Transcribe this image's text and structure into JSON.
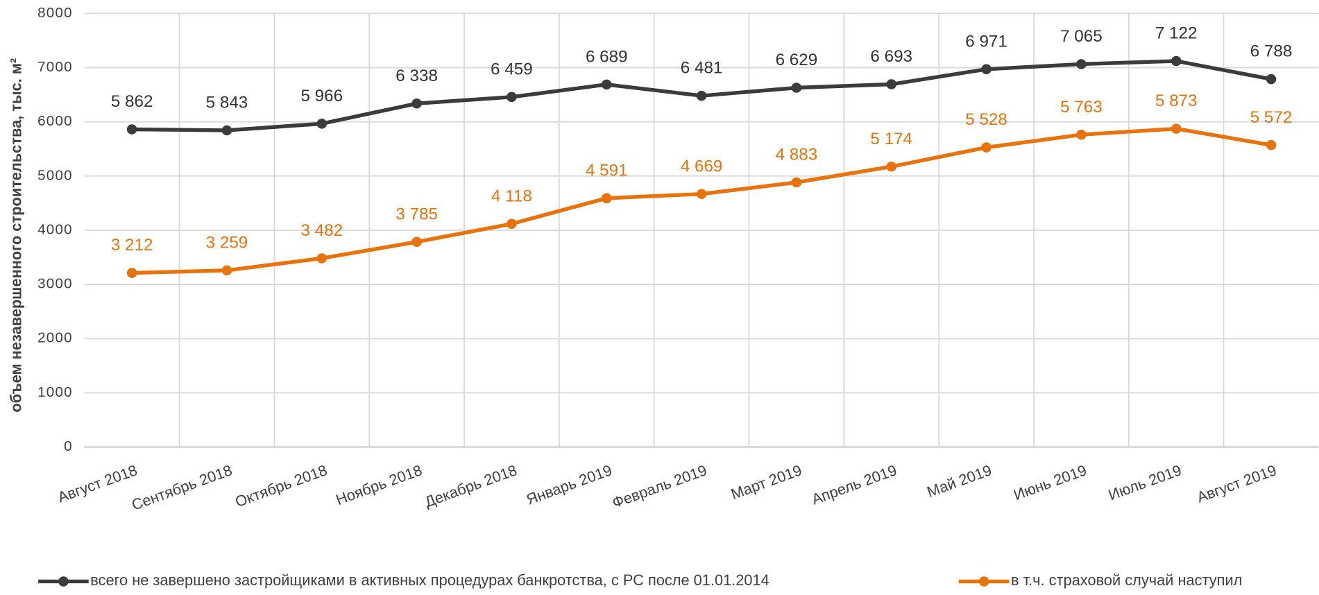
{
  "chart_data": {
    "type": "line",
    "y_label": "объем незавершенного строительства, тыс. м²",
    "categories": [
      "Август 2018",
      "Сентябрь 2018",
      "Октябрь 2018",
      "Ноябрь 2018",
      "Декабрь 2018",
      "Январь 2019",
      "Февраль 2019",
      "Март 2019",
      "Апрель 2019",
      "Май 2019",
      "Июнь 2019",
      "Июль 2019",
      "Август 2019"
    ],
    "series": [
      {
        "name": "всего не завершено застройщиками в активных процедурах банкротства, с РС после 01.01.2014",
        "color": "#3b3b3b",
        "values": [
          5862,
          5843,
          5966,
          6338,
          6459,
          6689,
          6481,
          6629,
          6693,
          6971,
          7065,
          7122,
          6788
        ],
        "value_labels": [
          "5 862",
          "5 843",
          "5 966",
          "6 338",
          "6 459",
          "6 689",
          "6 481",
          "6 629",
          "6 693",
          "6 971",
          "7 065",
          "7 122",
          "6 788"
        ]
      },
      {
        "name": "в т.ч. страховой случай наступил",
        "color": "#e8720c",
        "values": [
          3212,
          3259,
          3482,
          3785,
          4118,
          4591,
          4669,
          4883,
          5174,
          5528,
          5763,
          5873,
          5572
        ],
        "value_labels": [
          "3 212",
          "3 259",
          "3 482",
          "3 785",
          "4 118",
          "4 591",
          "4 669",
          "4 883",
          "5 174",
          "5 528",
          "5 763",
          "5 873",
          "5 572"
        ]
      }
    ],
    "ylim": [
      0,
      8000
    ],
    "yticks": [
      0,
      1000,
      2000,
      3000,
      4000,
      5000,
      6000,
      7000,
      8000
    ],
    "grid": true,
    "legend": "bottom"
  }
}
